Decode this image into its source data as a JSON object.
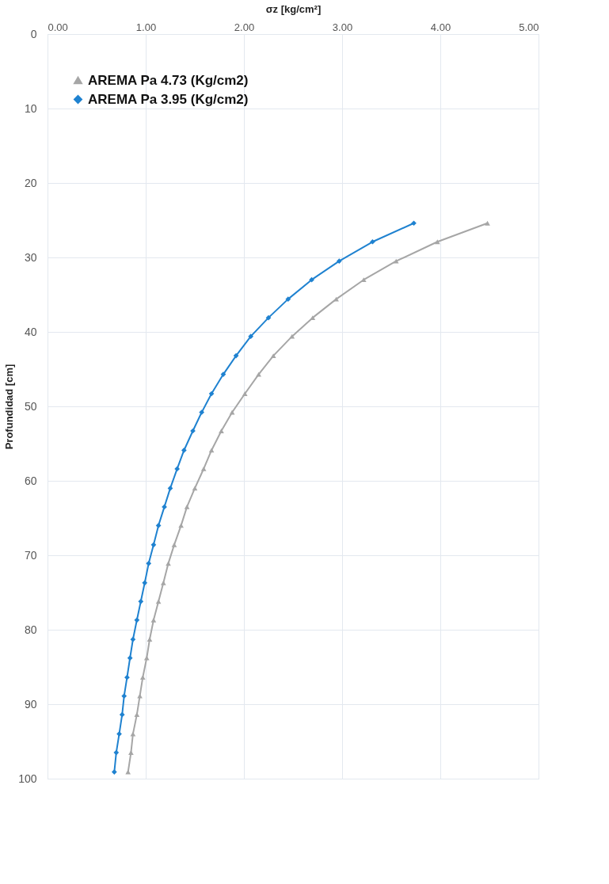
{
  "chart_data": {
    "type": "line",
    "xlabel": "σz [kg/cm²]",
    "ylabel": "Profundidad  [cm]",
    "xlim": [
      0,
      5
    ],
    "ylim": [
      100,
      0
    ],
    "xticks": [
      {
        "value": 0,
        "label": "0.00"
      },
      {
        "value": 1,
        "label": "1.00"
      },
      {
        "value": 2,
        "label": "2.00"
      },
      {
        "value": 3,
        "label": "3.00"
      },
      {
        "value": 4,
        "label": "4.00"
      },
      {
        "value": 5,
        "label": "5.00"
      }
    ],
    "yticks": [
      0,
      10,
      20,
      30,
      40,
      50,
      60,
      70,
      80,
      90,
      100
    ],
    "grid": true,
    "legend": "top left",
    "line_style": "solid",
    "series": [
      {
        "name": "AREMA Pa 4.73 (Kg/cm2)",
        "color": "#a6a6a6",
        "marker": "triangle",
        "x": [
          4.48,
          3.97,
          3.55,
          3.22,
          2.94,
          2.7,
          2.49,
          2.3,
          2.15,
          2.01,
          1.88,
          1.77,
          1.67,
          1.59,
          1.5,
          1.42,
          1.36,
          1.29,
          1.23,
          1.18,
          1.13,
          1.08,
          1.04,
          1.01,
          0.97,
          0.94,
          0.91,
          0.87,
          0.85,
          0.82
        ],
        "values": [
          25.4,
          27.9,
          30.5,
          33.0,
          35.6,
          38.1,
          40.6,
          43.2,
          45.7,
          48.3,
          50.8,
          53.3,
          55.9,
          58.4,
          61.0,
          63.5,
          66.0,
          68.6,
          71.1,
          73.7,
          76.2,
          78.7,
          81.3,
          83.8,
          86.4,
          88.9,
          91.4,
          94.0,
          96.5,
          99.1
        ]
      },
      {
        "name": "AREMA Pa 3.95 (Kg/cm2)",
        "color": "#1f82d0",
        "marker": "diamond",
        "x": [
          3.73,
          3.31,
          2.97,
          2.69,
          2.45,
          2.25,
          2.07,
          1.92,
          1.79,
          1.67,
          1.57,
          1.48,
          1.39,
          1.32,
          1.25,
          1.19,
          1.13,
          1.08,
          1.03,
          0.99,
          0.95,
          0.91,
          0.87,
          0.84,
          0.81,
          0.78,
          0.76,
          0.73,
          0.7,
          0.68
        ],
        "values": [
          25.4,
          27.9,
          30.5,
          33.0,
          35.6,
          38.1,
          40.6,
          43.2,
          45.7,
          48.3,
          50.8,
          53.3,
          55.9,
          58.4,
          61.0,
          63.5,
          66.0,
          68.6,
          71.1,
          73.7,
          76.2,
          78.7,
          81.3,
          83.8,
          86.4,
          88.9,
          91.4,
          94.0,
          96.5,
          99.1
        ]
      }
    ]
  }
}
